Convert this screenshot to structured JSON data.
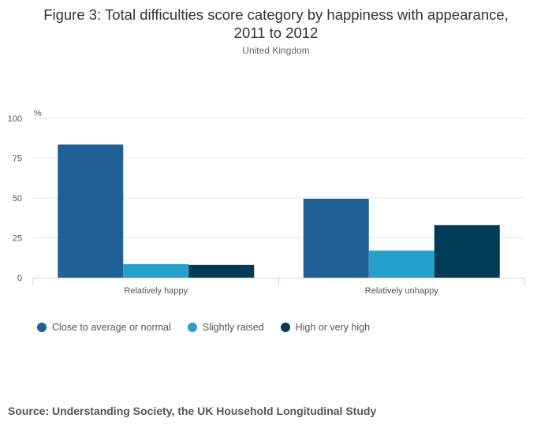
{
  "title_line1": "Figure 3: Total difficulties score category by happiness with appearance,",
  "title_line2": "2011 to 2012",
  "subtitle": "United Kingdom",
  "source": "Source: Understanding Society, the UK Household Longitudinal Study",
  "colors": {
    "s0": "#206095",
    "s1": "#27a0cc",
    "s2": "#003c57",
    "grid": "#e6e6e6",
    "axis": "#ccd6eb"
  },
  "chart_data": {
    "type": "bar",
    "title": "Figure 3: Total difficulties score category by happiness with appearance, 2011 to 2012",
    "subtitle": "United Kingdom",
    "ylabel": "%",
    "xlabel": "",
    "ylim": [
      0,
      100
    ],
    "yticks": [
      "0",
      "25",
      "50",
      "75",
      "100"
    ],
    "categories": [
      "Relatively happy",
      "Relatively unhappy"
    ],
    "series": [
      {
        "name": "Close to average or normal",
        "values": [
          83.5,
          49.5
        ]
      },
      {
        "name": "Slightly raised",
        "values": [
          8.5,
          17
        ]
      },
      {
        "name": "High or very high",
        "values": [
          8,
          33
        ]
      }
    ],
    "legend_position": "bottom-left",
    "grid": true
  }
}
